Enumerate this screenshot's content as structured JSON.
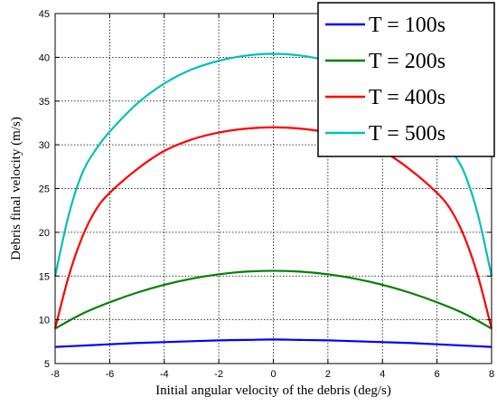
{
  "chart_data": {
    "type": "line",
    "xlabel": "Initial angular velocity of the debris (deg/s)",
    "ylabel": "Debris final velocity (m/s)",
    "xlim": [
      -8,
      8
    ],
    "ylim": [
      5,
      45
    ],
    "xticks": [
      -8,
      -6,
      -4,
      -2,
      0,
      2,
      4,
      6,
      8
    ],
    "yticks": [
      5,
      10,
      15,
      20,
      25,
      30,
      35,
      40,
      45
    ],
    "grid": true,
    "legend_position": "top-right",
    "series": [
      {
        "name": "T = 100s",
        "color": "#0000ff",
        "x": [
          -8,
          -7,
          -6,
          -5,
          -4,
          -3,
          -2,
          -1,
          0,
          1,
          2,
          3,
          4,
          5,
          6,
          7,
          8
        ],
        "y": [
          6.9,
          7.05,
          7.2,
          7.35,
          7.45,
          7.55,
          7.65,
          7.7,
          7.75,
          7.7,
          7.65,
          7.55,
          7.45,
          7.35,
          7.2,
          7.05,
          6.9
        ]
      },
      {
        "name": "T = 200s",
        "color": "#008000",
        "x": [
          -8,
          -7,
          -6,
          -5,
          -4,
          -3,
          -2,
          -1,
          0,
          1,
          2,
          3,
          4,
          5,
          6,
          7,
          8
        ],
        "y": [
          9.0,
          10.7,
          12.0,
          13.1,
          14.0,
          14.7,
          15.2,
          15.5,
          15.6,
          15.5,
          15.2,
          14.7,
          14.0,
          13.1,
          12.0,
          10.7,
          9.0
        ]
      },
      {
        "name": "T = 400s",
        "color": "#ff0000",
        "x": [
          -8,
          -7.5,
          -7,
          -6.5,
          -6,
          -5,
          -4,
          -3,
          -2,
          -1,
          0,
          1,
          2,
          3,
          4,
          5,
          6,
          6.5,
          7,
          7.5,
          8
        ],
        "y": [
          9.0,
          15.0,
          19.5,
          22.6,
          24.5,
          27.2,
          29.3,
          30.6,
          31.4,
          31.85,
          32.0,
          31.85,
          31.4,
          30.6,
          29.3,
          27.2,
          24.5,
          22.6,
          19.5,
          15.0,
          9.0
        ]
      },
      {
        "name": "T = 500s",
        "color": "#00bfbf",
        "x": [
          -8,
          -7.5,
          -7,
          -6.5,
          -6,
          -5,
          -4,
          -3,
          -2,
          -1,
          0,
          1,
          2,
          3,
          4,
          5,
          6,
          6.5,
          7,
          7.5,
          8
        ],
        "y": [
          15.0,
          22.0,
          26.8,
          29.5,
          31.5,
          34.7,
          37.0,
          38.6,
          39.6,
          40.2,
          40.4,
          40.2,
          39.6,
          38.6,
          37.0,
          34.7,
          31.5,
          29.5,
          26.8,
          22.0,
          15.0
        ]
      }
    ]
  }
}
